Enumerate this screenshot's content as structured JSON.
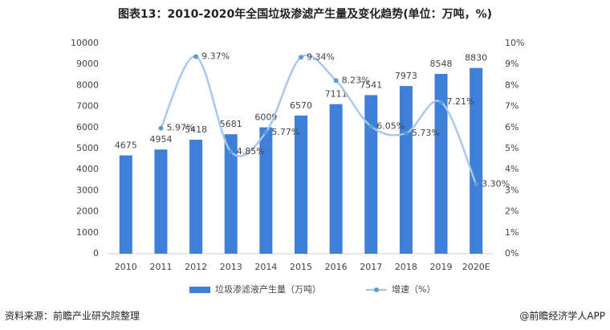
{
  "chart_data": {
    "type": "bar",
    "title": "图表13：2010-2020年全国垃圾渗滤产生量及变化趋势(单位：万吨，%)",
    "categories": [
      "2010",
      "2011",
      "2012",
      "2013",
      "2014",
      "2015",
      "2016",
      "2017",
      "2018",
      "2019",
      "2020E"
    ],
    "series": [
      {
        "name": "垃圾渗滤液产生量（万吨）",
        "type": "bar",
        "color": "#3d7fd9",
        "values": [
          4675,
          4954,
          5418,
          5681,
          6009,
          6570,
          7111,
          7541,
          7973,
          8548,
          8830
        ]
      },
      {
        "name": "增速（%）",
        "type": "line",
        "axis": "y2",
        "color": "#a8c8ee",
        "values": [
          null,
          5.97,
          9.37,
          4.85,
          5.77,
          9.34,
          8.23,
          6.05,
          5.73,
          7.21,
          3.3
        ],
        "value_labels": [
          null,
          "5.97%",
          "9.37%",
          "4.85%",
          "5.77%",
          "9.34%",
          "8.23%",
          "6.05%",
          "5.73%",
          "7.21%",
          "3.30%"
        ]
      }
    ],
    "ylim": [
      0,
      10000
    ],
    "yticks": [
      0,
      1000,
      2000,
      3000,
      4000,
      5000,
      6000,
      7000,
      8000,
      9000,
      10000
    ],
    "y2lim": [
      0,
      10
    ],
    "y2ticks": [
      {
        "value": 0,
        "label": "0%"
      },
      {
        "value": 1,
        "label": "1%"
      },
      {
        "value": 2,
        "label": "2%"
      },
      {
        "value": 3,
        "label": "3%"
      },
      {
        "value": 4,
        "label": "4%"
      },
      {
        "value": 5,
        "label": "5%"
      },
      {
        "value": 6,
        "label": "6%"
      },
      {
        "value": 7,
        "label": "7%"
      },
      {
        "value": 8,
        "label": "8%"
      },
      {
        "value": 9,
        "label": "9%"
      },
      {
        "value": 10,
        "label": "10%"
      }
    ],
    "grid": false,
    "legend": "bottom",
    "source": "资料来源：前瞻产业研究院整理",
    "credit": "@前瞻经济学人APP"
  }
}
